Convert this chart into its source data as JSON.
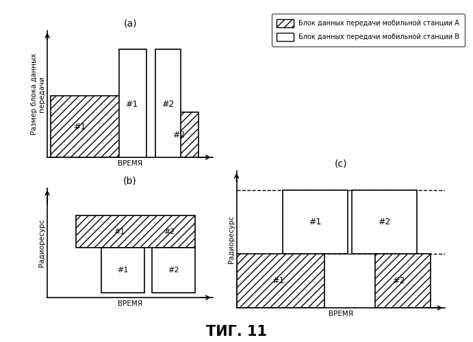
{
  "title_a": "(a)",
  "title_b": "(b)",
  "title_c": "(c)",
  "fig_label": "ΤИГ. 11",
  "ylabel_a": "Размер блока данных\nпередачи",
  "xlabel_a": "ВРЕМЯ",
  "ylabel_b": "Радиоресурс",
  "xlabel_b": "ВРЕМЯ",
  "ylabel_c": "Радиоресурс",
  "xlabel_c": "ВРЕМЯ",
  "legend_a": "Блок данных передачи мобильной станции А",
  "legend_b": "Блок данных передачи мобильной станции В"
}
